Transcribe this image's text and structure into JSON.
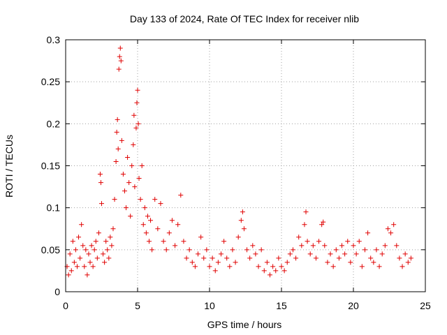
{
  "chart_data": {
    "type": "scatter",
    "title": "Day 133 of 2024, Rate Of TEC Index for receiver nlib",
    "xlabel": "GPS time / hours",
    "ylabel": "ROTI / TECUs",
    "xlim": [
      0,
      25
    ],
    "ylim": [
      0,
      0.3
    ],
    "x_ticks": [
      0,
      5,
      10,
      15,
      20,
      25
    ],
    "y_ticks": [
      0,
      0.05,
      0.1,
      0.15,
      0.2,
      0.25,
      0.3
    ],
    "x_tick_labels": [
      "0",
      "5",
      "10",
      "15",
      "20",
      "25"
    ],
    "y_tick_labels": [
      "0",
      "0.05",
      "0.1",
      "0.15",
      "0.2",
      "0.25",
      "0.3"
    ],
    "grid": true,
    "marker": "+",
    "color": "#e00000",
    "series": [
      {
        "name": "ROTI",
        "points": [
          [
            0.1,
            0.03
          ],
          [
            0.2,
            0.02
          ],
          [
            0.3,
            0.045
          ],
          [
            0.4,
            0.025
          ],
          [
            0.5,
            0.06
          ],
          [
            0.6,
            0.035
          ],
          [
            0.7,
            0.05
          ],
          [
            0.8,
            0.03
          ],
          [
            0.9,
            0.065
          ],
          [
            1.0,
            0.04
          ],
          [
            1.1,
            0.08
          ],
          [
            1.2,
            0.055
          ],
          [
            1.3,
            0.03
          ],
          [
            1.4,
            0.05
          ],
          [
            1.5,
            0.02
          ],
          [
            1.6,
            0.045
          ],
          [
            1.7,
            0.035
          ],
          [
            1.8,
            0.055
          ],
          [
            1.9,
            0.03
          ],
          [
            2.0,
            0.05
          ],
          [
            2.1,
            0.06
          ],
          [
            2.2,
            0.04
          ],
          [
            2.3,
            0.07
          ],
          [
            2.4,
            0.14
          ],
          [
            2.45,
            0.13
          ],
          [
            2.5,
            0.105
          ],
          [
            2.6,
            0.045
          ],
          [
            2.7,
            0.035
          ],
          [
            2.8,
            0.06
          ],
          [
            2.9,
            0.05
          ],
          [
            3.0,
            0.04
          ],
          [
            3.1,
            0.065
          ],
          [
            3.2,
            0.055
          ],
          [
            3.3,
            0.075
          ],
          [
            3.4,
            0.11
          ],
          [
            3.5,
            0.155
          ],
          [
            3.55,
            0.19
          ],
          [
            3.6,
            0.205
          ],
          [
            3.65,
            0.17
          ],
          [
            3.7,
            0.265
          ],
          [
            3.75,
            0.28
          ],
          [
            3.8,
            0.29
          ],
          [
            3.85,
            0.275
          ],
          [
            3.9,
            0.18
          ],
          [
            4.0,
            0.14
          ],
          [
            4.1,
            0.12
          ],
          [
            4.2,
            0.1
          ],
          [
            4.3,
            0.16
          ],
          [
            4.4,
            0.13
          ],
          [
            4.5,
            0.09
          ],
          [
            4.6,
            0.15
          ],
          [
            4.7,
            0.175
          ],
          [
            4.75,
            0.21
          ],
          [
            4.8,
            0.125
          ],
          [
            4.9,
            0.195
          ],
          [
            4.95,
            0.225
          ],
          [
            5.0,
            0.24
          ],
          [
            5.05,
            0.2
          ],
          [
            5.1,
            0.135
          ],
          [
            5.2,
            0.11
          ],
          [
            5.3,
            0.15
          ],
          [
            5.4,
            0.08
          ],
          [
            5.5,
            0.1
          ],
          [
            5.6,
            0.07
          ],
          [
            5.7,
            0.09
          ],
          [
            5.8,
            0.06
          ],
          [
            5.9,
            0.085
          ],
          [
            6.0,
            0.05
          ],
          [
            6.2,
            0.11
          ],
          [
            6.4,
            0.075
          ],
          [
            6.6,
            0.105
          ],
          [
            6.8,
            0.06
          ],
          [
            7.0,
            0.05
          ],
          [
            7.2,
            0.07
          ],
          [
            7.4,
            0.085
          ],
          [
            7.6,
            0.055
          ],
          [
            7.8,
            0.08
          ],
          [
            8.0,
            0.115
          ],
          [
            8.2,
            0.06
          ],
          [
            8.4,
            0.04
          ],
          [
            8.6,
            0.05
          ],
          [
            8.8,
            0.035
          ],
          [
            9.0,
            0.03
          ],
          [
            9.2,
            0.045
          ],
          [
            9.4,
            0.065
          ],
          [
            9.6,
            0.04
          ],
          [
            9.8,
            0.05
          ],
          [
            10.0,
            0.03
          ],
          [
            10.2,
            0.04
          ],
          [
            10.4,
            0.025
          ],
          [
            10.6,
            0.035
          ],
          [
            10.8,
            0.045
          ],
          [
            11.0,
            0.06
          ],
          [
            11.2,
            0.04
          ],
          [
            11.4,
            0.03
          ],
          [
            11.6,
            0.05
          ],
          [
            11.8,
            0.035
          ],
          [
            12.0,
            0.065
          ],
          [
            12.2,
            0.085
          ],
          [
            12.3,
            0.095
          ],
          [
            12.4,
            0.075
          ],
          [
            12.6,
            0.05
          ],
          [
            12.8,
            0.04
          ],
          [
            13.0,
            0.055
          ],
          [
            13.2,
            0.045
          ],
          [
            13.4,
            0.03
          ],
          [
            13.6,
            0.05
          ],
          [
            13.8,
            0.025
          ],
          [
            14.0,
            0.035
          ],
          [
            14.2,
            0.02
          ],
          [
            14.4,
            0.03
          ],
          [
            14.6,
            0.025
          ],
          [
            14.8,
            0.04
          ],
          [
            15.0,
            0.03
          ],
          [
            15.2,
            0.025
          ],
          [
            15.4,
            0.035
          ],
          [
            15.6,
            0.045
          ],
          [
            15.8,
            0.05
          ],
          [
            16.0,
            0.04
          ],
          [
            16.2,
            0.065
          ],
          [
            16.4,
            0.055
          ],
          [
            16.6,
            0.08
          ],
          [
            16.7,
            0.095
          ],
          [
            16.8,
            0.06
          ],
          [
            17.0,
            0.045
          ],
          [
            17.2,
            0.055
          ],
          [
            17.4,
            0.04
          ],
          [
            17.6,
            0.06
          ],
          [
            17.8,
            0.08
          ],
          [
            17.9,
            0.083
          ],
          [
            18.0,
            0.055
          ],
          [
            18.2,
            0.035
          ],
          [
            18.4,
            0.045
          ],
          [
            18.6,
            0.03
          ],
          [
            18.8,
            0.05
          ],
          [
            19.0,
            0.04
          ],
          [
            19.2,
            0.055
          ],
          [
            19.4,
            0.045
          ],
          [
            19.6,
            0.06
          ],
          [
            19.8,
            0.035
          ],
          [
            20.0,
            0.055
          ],
          [
            20.2,
            0.045
          ],
          [
            20.4,
            0.06
          ],
          [
            20.6,
            0.03
          ],
          [
            20.8,
            0.05
          ],
          [
            21.0,
            0.07
          ],
          [
            21.2,
            0.04
          ],
          [
            21.4,
            0.035
          ],
          [
            21.6,
            0.05
          ],
          [
            21.8,
            0.03
          ],
          [
            22.0,
            0.045
          ],
          [
            22.2,
            0.055
          ],
          [
            22.4,
            0.075
          ],
          [
            22.6,
            0.07
          ],
          [
            22.8,
            0.08
          ],
          [
            23.0,
            0.055
          ],
          [
            23.2,
            0.04
          ],
          [
            23.4,
            0.03
          ],
          [
            23.6,
            0.045
          ],
          [
            23.8,
            0.035
          ],
          [
            24.0,
            0.04
          ]
        ]
      }
    ]
  }
}
